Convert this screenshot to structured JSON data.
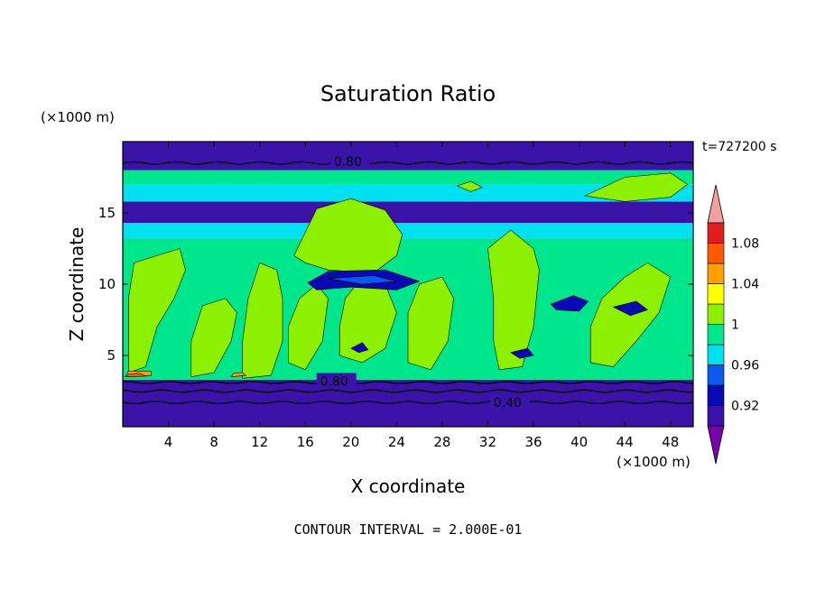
{
  "chart_data": {
    "type": "heatmap",
    "title": "Saturation Ratio",
    "xlabel": "X coordinate",
    "ylabel": "Z coordinate",
    "x_unit": "(×1000 m)",
    "y_unit": "(×1000 m)",
    "time_label": "t=727200 s",
    "footer": "CONTOUR INTERVAL = 2.000E-01",
    "xlim": [
      0,
      50
    ],
    "ylim": [
      0,
      20
    ],
    "xticks": [
      4,
      8,
      12,
      16,
      20,
      24,
      28,
      32,
      36,
      40,
      44,
      48
    ],
    "yticks": [
      5,
      10,
      15
    ],
    "colorbar": {
      "levels": [
        0.9,
        0.92,
        0.94,
        0.96,
        0.98,
        1.0,
        1.02,
        1.04,
        1.06,
        1.08,
        1.1
      ],
      "tick_labels": [
        "1.08",
        "1.04",
        "1",
        "0.96",
        "0.92"
      ],
      "tick_values": [
        1.08,
        1.04,
        1.0,
        0.96,
        0.92
      ],
      "colors": [
        "#7a00aa",
        "#3b13a8",
        "#0a0ab4",
        "#0a5af0",
        "#00e1f0",
        "#00e68c",
        "#8cf000",
        "#ffff00",
        "#ffa000",
        "#ff5a00",
        "#e11e1e",
        "#f5a0a0"
      ]
    },
    "contour_labels": [
      {
        "text": "0.80",
        "x": 18.5,
        "y": 18.6
      },
      {
        "text": "0.80",
        "x": 17.3,
        "y": 3.2
      },
      {
        "text": "0.40",
        "x": 32.5,
        "y": 1.7
      }
    ],
    "bands": [
      {
        "z0": 0,
        "z1": 3.3,
        "level": 0.9
      },
      {
        "z0": 3.3,
        "z1": 13.2,
        "level": 0.98
      },
      {
        "z0": 13.2,
        "z1": 14.3,
        "level": 0.96
      },
      {
        "z0": 14.3,
        "z1": 15.8,
        "level": 0.9
      },
      {
        "z0": 15.8,
        "z1": 17.0,
        "level": 0.96
      },
      {
        "z0": 17.0,
        "z1": 18.0,
        "level": 0.98
      },
      {
        "z0": 18.0,
        "z1": 20.0,
        "level": 0.9
      }
    ],
    "regions": [
      {
        "level": 1.0,
        "points": [
          [
            0.5,
            3.8
          ],
          [
            2,
            4.2
          ],
          [
            3,
            7
          ],
          [
            4.5,
            9
          ],
          [
            5.5,
            11
          ],
          [
            5,
            12.5
          ],
          [
            3,
            12
          ],
          [
            1,
            11.5
          ],
          [
            0.5,
            9
          ]
        ]
      },
      {
        "level": 1.0,
        "points": [
          [
            6,
            3.5
          ],
          [
            8,
            3.8
          ],
          [
            9.5,
            6
          ],
          [
            10,
            8
          ],
          [
            9,
            9
          ],
          [
            7,
            8.5
          ],
          [
            6,
            6
          ]
        ]
      },
      {
        "level": 1.0,
        "points": [
          [
            10.5,
            3.4
          ],
          [
            13,
            3.6
          ],
          [
            14,
            6
          ],
          [
            14,
            9
          ],
          [
            13.5,
            11
          ],
          [
            12,
            11.5
          ],
          [
            11,
            9
          ],
          [
            10.5,
            6
          ]
        ]
      },
      {
        "level": 1.0,
        "points": [
          [
            14.5,
            4.5
          ],
          [
            16,
            4
          ],
          [
            17.5,
            6
          ],
          [
            18,
            9
          ],
          [
            17,
            10
          ],
          [
            15.5,
            9
          ],
          [
            14.5,
            7
          ]
        ]
      },
      {
        "level": 1.0,
        "points": [
          [
            15,
            12
          ],
          [
            17,
            15.3
          ],
          [
            20,
            16
          ],
          [
            23,
            15.2
          ],
          [
            24.5,
            13.5
          ],
          [
            24,
            12
          ],
          [
            22,
            10.8
          ],
          [
            18,
            11
          ],
          [
            16,
            11.5
          ]
        ]
      },
      {
        "level": 1.0,
        "points": [
          [
            19,
            5
          ],
          [
            21,
            4.5
          ],
          [
            23,
            5.5
          ],
          [
            24,
            8
          ],
          [
            23,
            10
          ],
          [
            21,
            10.5
          ],
          [
            19.5,
            9
          ],
          [
            19,
            7
          ]
        ]
      },
      {
        "level": 1.0,
        "points": [
          [
            25,
            4.5
          ],
          [
            27,
            4
          ],
          [
            28.5,
            6
          ],
          [
            29,
            9
          ],
          [
            28,
            10.5
          ],
          [
            26,
            10
          ],
          [
            25,
            8
          ]
        ]
      },
      {
        "level": 1.0,
        "points": [
          [
            33,
            4
          ],
          [
            35,
            4.2
          ],
          [
            36,
            7
          ],
          [
            36.5,
            11
          ],
          [
            36,
            12.5
          ],
          [
            34,
            13.8
          ],
          [
            32,
            12.5
          ],
          [
            32.5,
            9
          ],
          [
            32.5,
            6
          ]
        ]
      },
      {
        "level": 1.0,
        "points": [
          [
            41,
            4.5
          ],
          [
            43,
            4.2
          ],
          [
            45,
            6
          ],
          [
            47,
            8
          ],
          [
            48,
            10.5
          ],
          [
            46,
            11.5
          ],
          [
            44,
            10.5
          ],
          [
            42,
            9
          ],
          [
            41,
            7
          ]
        ]
      },
      {
        "level": 1.0,
        "points": [
          [
            40.5,
            16.2
          ],
          [
            44,
            17.5
          ],
          [
            48,
            17.8
          ],
          [
            49.5,
            17
          ],
          [
            48,
            16.1
          ],
          [
            44,
            15.8
          ]
        ]
      },
      {
        "level": 1.0,
        "points": [
          [
            29.3,
            16.9
          ],
          [
            30.5,
            17.2
          ],
          [
            31.5,
            16.8
          ],
          [
            30.5,
            16.5
          ]
        ]
      },
      {
        "level": 0.92,
        "points": [
          [
            16.2,
            10.1
          ],
          [
            18,
            10.9
          ],
          [
            23,
            11
          ],
          [
            26,
            10.2
          ],
          [
            24,
            9.6
          ],
          [
            20,
            9.8
          ],
          [
            17,
            9.6
          ]
        ]
      },
      {
        "level": 0.94,
        "points": [
          [
            18,
            10.4
          ],
          [
            22,
            10.6
          ],
          [
            24,
            10.2
          ],
          [
            21,
            10
          ]
        ]
      },
      {
        "level": 0.92,
        "points": [
          [
            37.5,
            8.6
          ],
          [
            39.5,
            9.2
          ],
          [
            40.8,
            8.8
          ],
          [
            40,
            8.1
          ],
          [
            38,
            8.2
          ]
        ]
      },
      {
        "level": 0.92,
        "points": [
          [
            43,
            8.4
          ],
          [
            45,
            8.8
          ],
          [
            46,
            8.2
          ],
          [
            44.5,
            7.8
          ]
        ]
      },
      {
        "level": 0.92,
        "points": [
          [
            34,
            5.2
          ],
          [
            35.5,
            5.5
          ],
          [
            36,
            5
          ],
          [
            34.8,
            4.8
          ]
        ]
      },
      {
        "level": 0.92,
        "points": [
          [
            20,
            5.5
          ],
          [
            21,
            5.9
          ],
          [
            21.5,
            5.4
          ],
          [
            20.7,
            5.2
          ]
        ]
      },
      {
        "level": 1.04,
        "points": [
          [
            0.2,
            3.5
          ],
          [
            2.5,
            3.6
          ],
          [
            2.5,
            3.9
          ],
          [
            0.5,
            3.9
          ]
        ]
      },
      {
        "level": 1.06,
        "points": [
          [
            0.3,
            3.5
          ],
          [
            2,
            3.55
          ],
          [
            1.5,
            3.75
          ],
          [
            0.5,
            3.7
          ]
        ]
      },
      {
        "level": 1.04,
        "points": [
          [
            9.5,
            3.5
          ],
          [
            10.8,
            3.6
          ],
          [
            10.5,
            3.8
          ],
          [
            9.7,
            3.75
          ]
        ]
      }
    ],
    "contour_lines": [
      {
        "value": 0.8,
        "z": 18.5
      },
      {
        "value": 0.8,
        "z": 3.1
      },
      {
        "value": 0.6,
        "z": 2.5
      },
      {
        "value": 0.4,
        "z": 1.7
      }
    ]
  }
}
